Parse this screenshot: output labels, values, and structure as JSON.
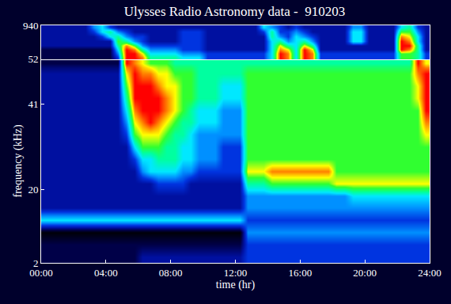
{
  "chart_data": [
    {
      "type": "heatmap",
      "title": "Ulysses Radio Astronomy data -  910203",
      "log": "y",
      "tick_labels": "y",
      "xlim": [
        0,
        24
      ],
      "ylim": [
        52,
        940
      ],
      "yticks": [
        52,
        940
      ],
      "color_range": [
        0,
        10
      ],
      "x_edges": [
        0,
        0.5,
        1,
        1.5,
        2,
        2.5,
        3,
        3.5,
        4,
        4.5,
        5,
        5.5,
        6,
        6.5,
        7,
        7.5,
        8,
        8.5,
        9,
        9.5,
        10,
        10.5,
        11,
        11.5,
        12,
        12.5,
        13,
        13.5,
        14,
        14.5,
        15,
        15.5,
        16,
        16.5,
        17,
        17.5,
        18,
        18.5,
        19,
        19.5,
        20,
        20.5,
        21,
        21.5,
        22,
        22.5,
        23,
        23.5,
        24
      ],
      "y_edges": [
        52,
        70,
        100,
        140,
        200,
        300,
        450,
        650,
        940
      ],
      "cells": [
        [
          1,
          1,
          1,
          1,
          1,
          1,
          1,
          1,
          1,
          3,
          10,
          10,
          9,
          6,
          6,
          6,
          6,
          5,
          5,
          5,
          3,
          3,
          3,
          3,
          3,
          3,
          3,
          3,
          5,
          10,
          9,
          5,
          10,
          9,
          3,
          3,
          3,
          3,
          3,
          3,
          3,
          3,
          3,
          3,
          7,
          7,
          6,
          3
        ],
        [
          1,
          1,
          1,
          1,
          1,
          1,
          1,
          1,
          1,
          4,
          10,
          10,
          8,
          5,
          5,
          5,
          5,
          4,
          4,
          4,
          3,
          3,
          3,
          3,
          3,
          3,
          3,
          3,
          5,
          10,
          9,
          5,
          10,
          9,
          3,
          3,
          3,
          3,
          3,
          3,
          3,
          3,
          3,
          3,
          7,
          7,
          6,
          3
        ],
        [
          1,
          1,
          1,
          1,
          1,
          1,
          1,
          1,
          1,
          5,
          10,
          9,
          6,
          4,
          4,
          4,
          4,
          3,
          3,
          3,
          2,
          2,
          2,
          2,
          2,
          2,
          2,
          2,
          5,
          9,
          8,
          5,
          10,
          8,
          2,
          2,
          2,
          2,
          2,
          2,
          2,
          2,
          2,
          2,
          10,
          9,
          6,
          2
        ],
        [
          2,
          2,
          2,
          2,
          2,
          2,
          2,
          2,
          2,
          6,
          9,
          7,
          4,
          3,
          3,
          3,
          3,
          3,
          3,
          3,
          2,
          2,
          2,
          2,
          2,
          2,
          2,
          2,
          5,
          8,
          6,
          5,
          8,
          6,
          2,
          2,
          2,
          2,
          2,
          2,
          2,
          2,
          2,
          2,
          10,
          10,
          6,
          2
        ],
        [
          2,
          2,
          2,
          2,
          2,
          2,
          2,
          2,
          2,
          7,
          6,
          4,
          3,
          2,
          2,
          2,
          2,
          3,
          3,
          3,
          2,
          2,
          2,
          2,
          2,
          2,
          2,
          2,
          5,
          6,
          4,
          5,
          6,
          4,
          2,
          2,
          2,
          2,
          5,
          5,
          2,
          2,
          2,
          2,
          10,
          9,
          5,
          2
        ],
        [
          2,
          2,
          2,
          2,
          2,
          2,
          2,
          3,
          5,
          6,
          4,
          3,
          3,
          2,
          2,
          2,
          2,
          3,
          3,
          3,
          2,
          2,
          2,
          2,
          2,
          2,
          2,
          2,
          6,
          4,
          3,
          5,
          4,
          3,
          2,
          2,
          2,
          2,
          5,
          5,
          2,
          2,
          2,
          2,
          9,
          8,
          5,
          2
        ],
        [
          2,
          2,
          2,
          2,
          2,
          2,
          3,
          5,
          6,
          4,
          3,
          2,
          2,
          2,
          2,
          2,
          2,
          3,
          3,
          3,
          2,
          2,
          2,
          2,
          2,
          2,
          2,
          3,
          6,
          3,
          3,
          4,
          3,
          2,
          2,
          2,
          2,
          2,
          5,
          5,
          2,
          2,
          2,
          2,
          7,
          7,
          4,
          2
        ],
        [
          2,
          2,
          2,
          2,
          2,
          2,
          4,
          5,
          3,
          2,
          2,
          2,
          2,
          2,
          2,
          2,
          2,
          2,
          2,
          2,
          2,
          2,
          2,
          2,
          2,
          2,
          2,
          5,
          4,
          3,
          2,
          3,
          2,
          2,
          2,
          2,
          2,
          2,
          4,
          4,
          2,
          2,
          2,
          2,
          5,
          6,
          3,
          2
        ]
      ]
    },
    {
      "type": "heatmap",
      "x_label": "time (hr)",
      "y_label": "frequency (kHz)",
      "xlim": [
        0,
        24
      ],
      "xticks": [
        {
          "value": 0,
          "label": "00:00"
        },
        {
          "value": 4,
          "label": "04:00"
        },
        {
          "value": 8,
          "label": "08:00"
        },
        {
          "value": 12,
          "label": "12:00"
        },
        {
          "value": 16,
          "label": "16:00"
        },
        {
          "value": 20,
          "label": "20:00"
        },
        {
          "value": 24,
          "label": "24:00"
        }
      ],
      "ylim": [
        2,
        52
      ],
      "yticks": [
        2,
        20,
        41
      ],
      "color_range": [
        0,
        10
      ],
      "x_edges": [
        0,
        0.5,
        1,
        1.5,
        2,
        2.5,
        3,
        3.5,
        4,
        4.5,
        5,
        5.5,
        6,
        6.5,
        7,
        7.5,
        8,
        8.5,
        9,
        9.5,
        10,
        10.5,
        11,
        11.5,
        12,
        12.5,
        13,
        13.5,
        14,
        14.5,
        15,
        15.5,
        16,
        16.5,
        17,
        17.5,
        18,
        18.5,
        19,
        19.5,
        20,
        20.5,
        21,
        21.5,
        22,
        22.5,
        23,
        23.5,
        24
      ],
      "y_edges": [
        2,
        5,
        8,
        11,
        14,
        17,
        20,
        23,
        26,
        29,
        32,
        35,
        38,
        41,
        44,
        47,
        50,
        52
      ],
      "cells": [
        [
          1,
          1,
          1,
          1,
          1,
          1,
          1,
          1,
          1,
          1,
          1,
          1,
          2,
          2,
          2,
          2,
          2,
          2,
          2,
          2,
          2,
          2,
          2,
          2,
          2,
          3,
          3,
          3,
          3,
          3,
          3,
          3,
          3,
          3,
          3,
          3,
          3,
          3,
          3,
          3,
          3,
          3,
          3,
          3,
          3,
          3,
          3,
          3
        ],
        [
          1,
          1,
          1,
          1,
          1,
          1,
          1,
          1,
          1,
          1,
          1,
          1,
          1,
          1,
          1,
          1,
          1,
          1,
          1,
          1,
          1,
          1,
          1,
          1,
          1,
          3,
          3,
          3,
          3,
          3,
          3,
          3,
          3,
          3,
          3,
          3,
          3,
          3,
          3,
          3,
          3,
          3,
          3,
          3,
          3,
          3,
          3,
          3
        ],
        [
          0,
          0,
          0,
          0,
          0,
          0,
          0,
          0,
          0,
          0,
          0,
          0,
          0,
          0,
          0,
          0,
          0,
          0,
          0,
          0,
          0,
          0,
          0,
          0,
          0,
          4,
          4,
          4,
          4,
          4,
          4,
          4,
          4,
          4,
          4,
          4,
          4,
          4,
          4,
          4,
          4,
          4,
          4,
          4,
          4,
          4,
          4,
          4
        ],
        [
          5,
          5,
          5,
          5,
          5,
          5,
          5,
          5,
          5,
          5,
          5,
          5,
          5,
          5,
          5,
          5,
          5,
          5,
          5,
          5,
          5,
          5,
          5,
          5,
          5,
          3,
          3,
          3,
          3,
          3,
          3,
          3,
          3,
          3,
          3,
          3,
          3,
          3,
          3,
          3,
          3,
          3,
          3,
          3,
          3,
          3,
          3,
          3
        ],
        [
          2,
          2,
          2,
          2,
          2,
          2,
          2,
          2,
          2,
          2,
          2,
          2,
          2,
          2,
          2,
          2,
          2,
          2,
          2,
          2,
          2,
          2,
          2,
          2,
          2,
          4,
          4,
          4,
          4,
          4,
          4,
          4,
          4,
          4,
          4,
          4,
          4,
          4,
          4,
          4,
          4,
          4,
          4,
          4,
          4,
          4,
          4,
          4
        ],
        [
          2,
          2,
          2,
          2,
          2,
          2,
          2,
          2,
          2,
          2,
          2,
          2,
          2,
          2,
          2,
          2,
          2,
          2,
          2,
          2,
          2,
          2,
          2,
          2,
          2,
          4,
          4,
          4,
          4,
          4,
          4,
          4,
          4,
          4,
          4,
          4,
          4,
          4,
          5,
          5,
          5,
          5,
          5,
          5,
          5,
          5,
          5,
          5
        ],
        [
          2,
          2,
          2,
          2,
          2,
          2,
          2,
          2,
          2,
          2,
          2,
          2,
          2,
          2,
          3,
          3,
          3,
          3,
          2,
          2,
          2,
          2,
          2,
          2,
          2,
          6,
          6,
          6,
          7,
          7,
          7,
          7,
          7,
          7,
          7,
          7,
          8,
          8,
          8,
          8,
          8,
          8,
          8,
          8,
          8,
          8,
          8,
          8
        ],
        [
          2,
          2,
          2,
          2,
          2,
          2,
          2,
          2,
          2,
          2,
          2,
          2,
          4,
          5,
          5,
          5,
          5,
          4,
          4,
          3,
          3,
          3,
          3,
          3,
          3,
          8,
          8,
          8,
          9,
          9,
          9,
          9,
          9,
          9,
          9,
          9,
          7,
          7,
          7,
          7,
          7,
          7,
          7,
          7,
          7,
          7,
          7,
          7
        ],
        [
          2,
          2,
          2,
          2,
          2,
          2,
          2,
          2,
          2,
          2,
          2,
          3,
          5,
          5,
          6,
          6,
          6,
          5,
          5,
          4,
          4,
          4,
          3,
          3,
          3,
          7,
          7,
          7,
          7,
          7,
          7,
          7,
          7,
          7,
          7,
          7,
          7,
          7,
          7,
          7,
          7,
          7,
          7,
          7,
          7,
          7,
          7,
          7
        ],
        [
          2,
          2,
          2,
          2,
          2,
          2,
          2,
          2,
          2,
          2,
          2,
          5,
          7,
          7,
          7,
          6,
          6,
          5,
          5,
          4,
          4,
          4,
          3,
          3,
          3,
          7,
          7,
          7,
          7,
          7,
          7,
          7,
          7,
          7,
          7,
          7,
          7,
          7,
          7,
          7,
          7,
          7,
          7,
          7,
          7,
          7,
          7,
          7
        ],
        [
          2,
          2,
          2,
          2,
          2,
          2,
          2,
          2,
          2,
          2,
          3,
          7,
          8,
          8,
          8,
          7,
          6,
          6,
          5,
          4,
          4,
          4,
          4,
          4,
          4,
          7,
          7,
          7,
          7,
          7,
          7,
          7,
          7,
          7,
          7,
          7,
          7,
          7,
          7,
          7,
          7,
          7,
          7,
          7,
          7,
          7,
          7,
          8
        ],
        [
          2,
          2,
          2,
          2,
          2,
          2,
          2,
          2,
          2,
          2,
          4,
          8,
          9,
          10,
          9,
          8,
          7,
          6,
          6,
          5,
          5,
          5,
          4,
          4,
          4,
          7,
          7,
          7,
          7,
          7,
          7,
          7,
          7,
          7,
          7,
          7,
          7,
          7,
          7,
          7,
          7,
          7,
          7,
          7,
          7,
          7,
          7,
          9
        ],
        [
          2,
          2,
          2,
          2,
          2,
          2,
          2,
          2,
          2,
          2,
          5,
          9,
          10,
          10,
          10,
          9,
          8,
          7,
          6,
          5,
          5,
          5,
          4,
          4,
          4,
          7,
          7,
          7,
          7,
          7,
          7,
          7,
          7,
          7,
          7,
          7,
          7,
          7,
          7,
          7,
          7,
          7,
          7,
          7,
          7,
          7,
          7,
          10
        ],
        [
          2,
          2,
          2,
          2,
          2,
          2,
          2,
          2,
          2,
          2,
          6,
          10,
          10,
          10,
          10,
          9,
          8,
          7,
          7,
          6,
          6,
          6,
          5,
          5,
          5,
          7,
          7,
          7,
          7,
          7,
          7,
          7,
          7,
          7,
          7,
          7,
          7,
          7,
          7,
          7,
          7,
          7,
          7,
          7,
          7,
          7,
          8,
          10
        ],
        [
          2,
          2,
          2,
          2,
          2,
          2,
          2,
          2,
          2,
          2,
          7,
          10,
          10,
          10,
          9,
          8,
          8,
          7,
          7,
          6,
          6,
          6,
          5,
          5,
          5,
          7,
          7,
          7,
          7,
          7,
          7,
          7,
          7,
          7,
          7,
          7,
          7,
          7,
          7,
          7,
          7,
          7,
          7,
          7,
          7,
          7,
          8,
          10
        ],
        [
          2,
          2,
          2,
          2,
          2,
          2,
          2,
          2,
          2,
          2,
          8,
          10,
          9,
          9,
          8,
          8,
          7,
          7,
          7,
          6,
          6,
          6,
          6,
          6,
          6,
          7,
          7,
          7,
          7,
          7,
          7,
          7,
          7,
          7,
          7,
          7,
          7,
          7,
          7,
          7,
          7,
          7,
          7,
          7,
          7,
          7,
          9,
          10
        ],
        [
          1,
          1,
          1,
          1,
          1,
          1,
          1,
          1,
          1,
          1,
          10,
          9,
          8,
          7,
          7,
          7,
          6,
          6,
          6,
          6,
          6,
          6,
          6,
          6,
          6,
          6,
          6,
          6,
          6,
          6,
          6,
          6,
          6,
          6,
          6,
          6,
          6,
          6,
          6,
          6,
          6,
          6,
          6,
          6,
          6,
          6,
          10,
          8
        ]
      ]
    }
  ]
}
